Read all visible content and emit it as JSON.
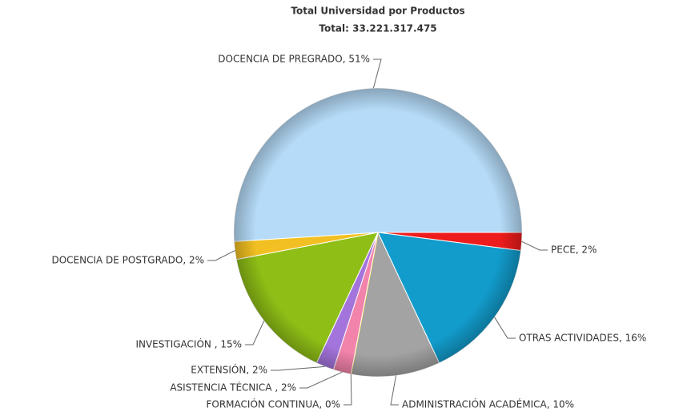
{
  "chart_data": {
    "type": "pie",
    "title": "Total Universidad por Productos",
    "subtitle": "Total: 33.221.317.475",
    "labels": [
      "PECE, 2%",
      "OTRAS ACTIVIDADES, 16%",
      "ADMINISTRACIÓN ACADÉMICA, 10%",
      "FORMACIÓN CONTINUA, 0%",
      "ASISTENCIA TÉCNICA , 2%",
      "EXTENSIÓN, 2%",
      "INVESTIGACIÓN , 15%",
      "DOCENCIA DE POSTGRADO, 2%",
      "DOCENCIA DE PREGRADO, 51%"
    ],
    "values": [
      2,
      16,
      10,
      0,
      2,
      2,
      15,
      2,
      51
    ],
    "colors": [
      "#ee1c1c",
      "#129ccc",
      "#a3a3a3",
      "#f2d43c",
      "#f283ab",
      "#a374dc",
      "#8fbf16",
      "#f2c022",
      "#b5dbf8"
    ]
  }
}
